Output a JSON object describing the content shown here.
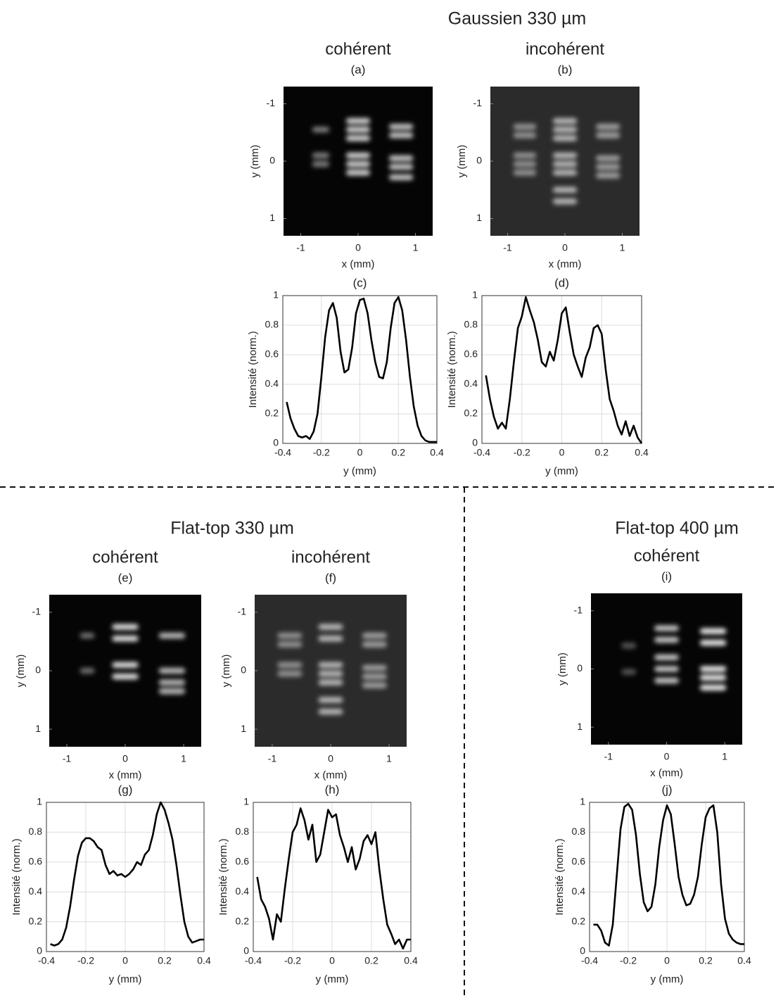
{
  "sections": [
    "Gaussien 330 µm",
    "Flat-top 330 µm",
    "Flat-top 400 µm"
  ],
  "chart_data": [
    {
      "type": "image",
      "title": "cohérent",
      "subtitle": "(a)",
      "xlabel": "x (mm)",
      "ylabel": "y (mm)",
      "xlim": [
        -1.3,
        1.3
      ],
      "ylim": [
        1.3,
        -1.3
      ],
      "xticks": [
        -1,
        0,
        1
      ],
      "yticks": [
        -1,
        0,
        1
      ],
      "background": "#050505"
    },
    {
      "type": "image",
      "title": "incohérent",
      "subtitle": "(b)",
      "xlabel": "x (mm)",
      "ylabel": "y (mm)",
      "xlim": [
        -1.3,
        1.3
      ],
      "ylim": [
        1.3,
        -1.3
      ],
      "xticks": [
        -1,
        0,
        1
      ],
      "yticks": [
        -1,
        0,
        1
      ],
      "background": "#2b2b2b"
    },
    {
      "type": "line",
      "title": "(c)",
      "xlabel": "y (mm)",
      "ylabel": "Intensité (norm.)",
      "xlim": [
        -0.4,
        0.4
      ],
      "ylim": [
        0,
        1
      ],
      "xticks": [
        -0.4,
        -0.2,
        0,
        0.2,
        0.4
      ],
      "yticks": [
        0,
        0.2,
        0.4,
        0.6,
        0.8,
        1
      ],
      "grid": true,
      "color": "#000000",
      "x": [
        -0.38,
        -0.36,
        -0.34,
        -0.32,
        -0.3,
        -0.28,
        -0.26,
        -0.24,
        -0.22,
        -0.2,
        -0.18,
        -0.16,
        -0.14,
        -0.12,
        -0.1,
        -0.08,
        -0.06,
        -0.04,
        -0.02,
        0,
        0.02,
        0.04,
        0.06,
        0.08,
        0.1,
        0.12,
        0.14,
        0.16,
        0.18,
        0.2,
        0.22,
        0.24,
        0.26,
        0.28,
        0.3,
        0.32,
        0.34,
        0.36,
        0.38,
        0.4
      ],
      "values": [
        0.28,
        0.17,
        0.1,
        0.05,
        0.04,
        0.05,
        0.03,
        0.08,
        0.2,
        0.45,
        0.72,
        0.9,
        0.95,
        0.85,
        0.62,
        0.48,
        0.5,
        0.65,
        0.88,
        0.97,
        0.98,
        0.88,
        0.7,
        0.55,
        0.45,
        0.44,
        0.55,
        0.78,
        0.95,
        0.99,
        0.9,
        0.7,
        0.45,
        0.25,
        0.12,
        0.05,
        0.02,
        0.01,
        0.01,
        0.01
      ]
    },
    {
      "type": "line",
      "title": "(d)",
      "xlabel": "y (mm)",
      "ylabel": "Intensité (norm.)",
      "xlim": [
        -0.4,
        0.4
      ],
      "ylim": [
        0,
        1
      ],
      "xticks": [
        -0.4,
        -0.2,
        0,
        0.2,
        0.4
      ],
      "yticks": [
        0,
        0.2,
        0.4,
        0.6,
        0.8,
        1
      ],
      "grid": true,
      "color": "#000000",
      "x": [
        -0.38,
        -0.36,
        -0.34,
        -0.32,
        -0.3,
        -0.28,
        -0.26,
        -0.24,
        -0.22,
        -0.2,
        -0.18,
        -0.16,
        -0.14,
        -0.12,
        -0.1,
        -0.08,
        -0.06,
        -0.04,
        -0.02,
        0,
        0.02,
        0.04,
        0.06,
        0.08,
        0.1,
        0.12,
        0.14,
        0.16,
        0.18,
        0.2,
        0.22,
        0.24,
        0.26,
        0.28,
        0.3,
        0.32,
        0.34,
        0.36,
        0.38,
        0.4
      ],
      "values": [
        0.46,
        0.3,
        0.18,
        0.1,
        0.14,
        0.1,
        0.3,
        0.55,
        0.78,
        0.86,
        0.99,
        0.9,
        0.82,
        0.7,
        0.55,
        0.52,
        0.62,
        0.56,
        0.7,
        0.88,
        0.92,
        0.75,
        0.6,
        0.52,
        0.45,
        0.58,
        0.65,
        0.78,
        0.8,
        0.74,
        0.5,
        0.3,
        0.22,
        0.12,
        0.06,
        0.15,
        0.05,
        0.12,
        0.04,
        0
      ]
    },
    {
      "type": "image",
      "title": "cohérent",
      "subtitle": "(e)",
      "xlabel": "x (mm)",
      "ylabel": "y (mm)",
      "xlim": [
        -1.3,
        1.3
      ],
      "ylim": [
        1.3,
        -1.3
      ],
      "xticks": [
        -1,
        0,
        1
      ],
      "yticks": [
        -1,
        0,
        1
      ],
      "background": "#050505"
    },
    {
      "type": "image",
      "title": "incohérent",
      "subtitle": "(f)",
      "xlabel": "x (mm)",
      "ylabel": "y (mm)",
      "xlim": [
        -1.3,
        1.3
      ],
      "ylim": [
        1.3,
        -1.3
      ],
      "xticks": [
        -1,
        0,
        1
      ],
      "yticks": [
        -1,
        0,
        1
      ],
      "background": "#2b2b2b"
    },
    {
      "type": "line",
      "title": "(g)",
      "xlabel": "y (mm)",
      "ylabel": "Intensité (norm.)",
      "xlim": [
        -0.4,
        0.4
      ],
      "ylim": [
        0,
        1
      ],
      "xticks": [
        -0.4,
        -0.2,
        0,
        0.2,
        0.4
      ],
      "yticks": [
        0,
        0.2,
        0.4,
        0.6,
        0.8,
        1
      ],
      "grid": true,
      "color": "#000000",
      "x": [
        -0.38,
        -0.36,
        -0.34,
        -0.32,
        -0.3,
        -0.28,
        -0.26,
        -0.24,
        -0.22,
        -0.2,
        -0.18,
        -0.16,
        -0.14,
        -0.12,
        -0.1,
        -0.08,
        -0.06,
        -0.04,
        -0.02,
        0,
        0.02,
        0.04,
        0.06,
        0.08,
        0.1,
        0.12,
        0.14,
        0.16,
        0.18,
        0.2,
        0.22,
        0.24,
        0.26,
        0.28,
        0.3,
        0.32,
        0.34,
        0.36,
        0.38,
        0.4
      ],
      "values": [
        0.05,
        0.04,
        0.05,
        0.08,
        0.16,
        0.3,
        0.48,
        0.64,
        0.73,
        0.76,
        0.76,
        0.74,
        0.7,
        0.68,
        0.58,
        0.52,
        0.54,
        0.51,
        0.52,
        0.5,
        0.52,
        0.55,
        0.6,
        0.58,
        0.65,
        0.68,
        0.78,
        0.92,
        1,
        0.95,
        0.86,
        0.75,
        0.58,
        0.38,
        0.2,
        0.1,
        0.06,
        0.07,
        0.08,
        0.08
      ]
    },
    {
      "type": "line",
      "title": "(h)",
      "xlabel": "y (mm)",
      "ylabel": "Intensité (norm.)",
      "xlim": [
        -0.4,
        0.4
      ],
      "ylim": [
        0,
        1
      ],
      "xticks": [
        -0.4,
        -0.2,
        0,
        0.2,
        0.4
      ],
      "yticks": [
        0,
        0.2,
        0.4,
        0.6,
        0.8,
        1
      ],
      "grid": true,
      "color": "#000000",
      "x": [
        -0.38,
        -0.36,
        -0.34,
        -0.32,
        -0.3,
        -0.28,
        -0.26,
        -0.24,
        -0.22,
        -0.2,
        -0.18,
        -0.16,
        -0.14,
        -0.12,
        -0.1,
        -0.08,
        -0.06,
        -0.04,
        -0.02,
        0,
        0.02,
        0.04,
        0.06,
        0.08,
        0.1,
        0.12,
        0.14,
        0.16,
        0.18,
        0.2,
        0.22,
        0.24,
        0.26,
        0.28,
        0.3,
        0.32,
        0.34,
        0.36,
        0.38,
        0.4
      ],
      "values": [
        0.5,
        0.35,
        0.3,
        0.22,
        0.08,
        0.25,
        0.2,
        0.42,
        0.62,
        0.8,
        0.85,
        0.96,
        0.88,
        0.75,
        0.85,
        0.6,
        0.65,
        0.8,
        0.95,
        0.9,
        0.92,
        0.78,
        0.7,
        0.6,
        0.7,
        0.55,
        0.62,
        0.74,
        0.78,
        0.72,
        0.8,
        0.55,
        0.35,
        0.18,
        0.12,
        0.05,
        0.08,
        0.02,
        0.08,
        0.08
      ]
    },
    {
      "type": "image",
      "title": "cohérent",
      "subtitle": "(i)",
      "xlabel": "x (mm)",
      "ylabel": "y (mm)",
      "xlim": [
        -1.3,
        1.3
      ],
      "ylim": [
        1.3,
        -1.3
      ],
      "xticks": [
        -1,
        0,
        1
      ],
      "yticks": [
        -1,
        0,
        1
      ],
      "background": "#050505"
    },
    {
      "type": "line",
      "title": "(j)",
      "xlabel": "y (mm)",
      "ylabel": "Intensité (norm.)",
      "xlim": [
        -0.4,
        0.4
      ],
      "ylim": [
        0,
        1
      ],
      "xticks": [
        -0.4,
        -0.2,
        0,
        0.2,
        0.4
      ],
      "yticks": [
        0,
        0.2,
        0.4,
        0.6,
        0.8,
        1
      ],
      "grid": true,
      "color": "#000000",
      "x": [
        -0.38,
        -0.36,
        -0.34,
        -0.32,
        -0.3,
        -0.28,
        -0.26,
        -0.24,
        -0.22,
        -0.2,
        -0.18,
        -0.16,
        -0.14,
        -0.12,
        -0.1,
        -0.08,
        -0.06,
        -0.04,
        -0.02,
        0,
        0.02,
        0.04,
        0.06,
        0.08,
        0.1,
        0.12,
        0.14,
        0.16,
        0.18,
        0.2,
        0.22,
        0.24,
        0.26,
        0.28,
        0.3,
        0.32,
        0.34,
        0.36,
        0.38,
        0.4
      ],
      "values": [
        0.18,
        0.18,
        0.14,
        0.06,
        0.04,
        0.18,
        0.5,
        0.82,
        0.97,
        0.99,
        0.95,
        0.78,
        0.52,
        0.33,
        0.27,
        0.3,
        0.45,
        0.7,
        0.88,
        0.98,
        0.92,
        0.72,
        0.5,
        0.38,
        0.31,
        0.32,
        0.38,
        0.5,
        0.72,
        0.9,
        0.96,
        0.98,
        0.8,
        0.45,
        0.22,
        0.12,
        0.08,
        0.06,
        0.05,
        0.05
      ]
    }
  ]
}
